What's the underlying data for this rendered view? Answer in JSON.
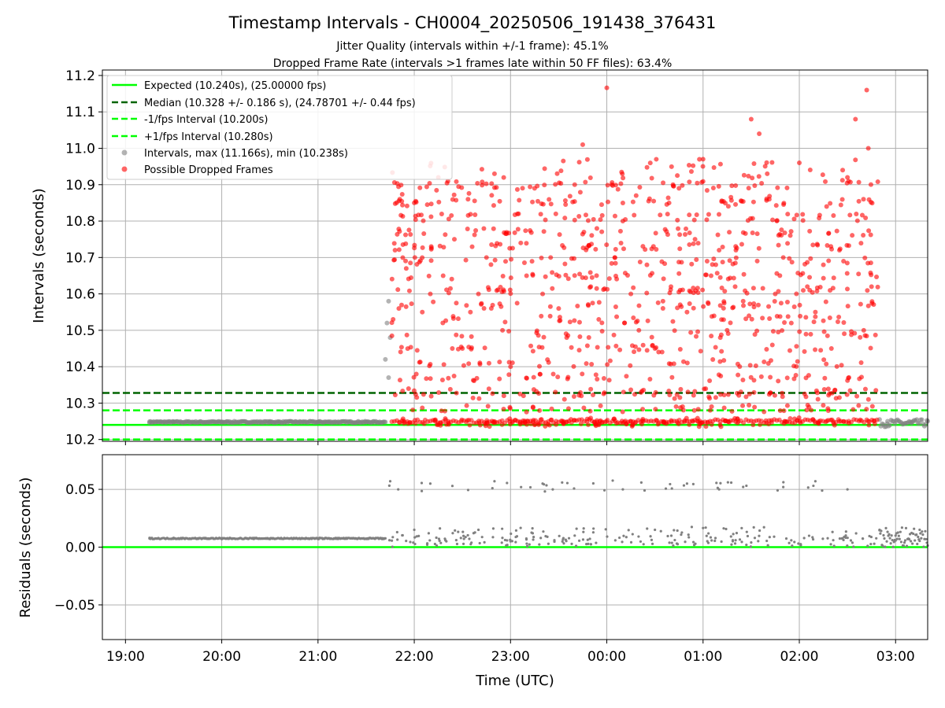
{
  "chart_data": [
    {
      "type": "scatter",
      "title": "Timestamp Intervals - CH0004_20250506_191438_376431",
      "subtitle_lines": [
        "Jitter Quality (intervals within +/-1 frame): 45.1%",
        "Dropped Frame Rate (intervals >1 frames late within 50 FF files): 63.4%"
      ],
      "ylabel": "Intervals (seconds)",
      "ylim": [
        10.195,
        11.215
      ],
      "ytick_labels": [
        "10.2",
        "10.3",
        "10.4",
        "10.5",
        "10.6",
        "10.7",
        "10.8",
        "10.9",
        "11.0",
        "11.1",
        "11.2"
      ],
      "grid": true,
      "legend_placement": "top-left",
      "legend": [
        {
          "label": "Expected (10.240s), (25.00000 fps)",
          "style": "solid",
          "color": "#00ff00"
        },
        {
          "label": "Median (10.328 +/- 0.186 s), (24.78701 +/- 0.44 fps)",
          "style": "dashed",
          "color": "#006400"
        },
        {
          "label": "-1/fps Interval (10.200s)",
          "style": "dashed",
          "color": "#00ff00"
        },
        {
          "label": "+1/fps Interval (10.280s)",
          "style": "dashed",
          "color": "#00ff00"
        },
        {
          "label": "Intervals, max (11.166s), min (10.238s)",
          "style": "marker",
          "color": "#808080"
        },
        {
          "label": "Possible Dropped Frames",
          "style": "marker",
          "color": "#ff0000"
        }
      ],
      "hlines": [
        {
          "name": "expected",
          "y": 10.24,
          "color": "#00ff00",
          "style": "solid"
        },
        {
          "name": "median",
          "y": 10.328,
          "color": "#006400",
          "style": "dashed"
        },
        {
          "name": "minus-one-fps",
          "y": 10.2,
          "color": "#00ff00",
          "style": "dashed"
        },
        {
          "name": "plus-one-fps",
          "y": 10.28,
          "color": "#00ff00",
          "style": "dashed"
        }
      ],
      "series": [
        {
          "name": "Intervals, max (11.166s), min (10.238s)",
          "color": "#808080",
          "values": [
            {
              "x": "19:15",
              "y": 10.249
            },
            {
              "x": "19:30",
              "y": 10.248
            },
            {
              "x": "20:00",
              "y": 10.248
            },
            {
              "x": "20:30",
              "y": 10.248
            },
            {
              "x": "21:00",
              "y": 10.248
            },
            {
              "x": "21:30",
              "y": 10.248
            },
            {
              "x": "21:42",
              "y": 10.42
            },
            {
              "x": "21:43",
              "y": 10.52
            },
            {
              "x": "21:44",
              "y": 10.58
            },
            {
              "x": "21:45",
              "y": 10.48
            },
            {
              "x": "21:44",
              "y": 10.37
            },
            {
              "x": "02:55",
              "y": 10.25
            },
            {
              "x": "03:10",
              "y": 10.245
            },
            {
              "x": "03:20",
              "y": 10.25
            }
          ]
        },
        {
          "name": "Possible Dropped Frames",
          "color": "#ff0000",
          "values": [
            {
              "x": "21:48",
              "y": 10.72
            },
            {
              "x": "21:55",
              "y": 10.67
            },
            {
              "x": "22:00",
              "y": 10.85
            },
            {
              "x": "22:05",
              "y": 10.55
            },
            {
              "x": "22:10",
              "y": 10.6
            },
            {
              "x": "22:15",
              "y": 10.92
            },
            {
              "x": "22:18",
              "y": 10.65
            },
            {
              "x": "22:25",
              "y": 10.75
            },
            {
              "x": "22:30",
              "y": 10.45
            },
            {
              "x": "22:35",
              "y": 10.55
            },
            {
              "x": "22:40",
              "y": 10.6
            },
            {
              "x": "22:45",
              "y": 10.7
            },
            {
              "x": "22:50",
              "y": 10.93
            },
            {
              "x": "22:55",
              "y": 10.5
            },
            {
              "x": "23:00",
              "y": 10.4
            },
            {
              "x": "23:05",
              "y": 10.82
            },
            {
              "x": "23:10",
              "y": 10.65
            },
            {
              "x": "23:15",
              "y": 10.89
            },
            {
              "x": "23:20",
              "y": 10.6
            },
            {
              "x": "23:25",
              "y": 10.7
            },
            {
              "x": "23:30",
              "y": 10.56
            },
            {
              "x": "23:35",
              "y": 10.48
            },
            {
              "x": "23:40",
              "y": 10.9
            },
            {
              "x": "23:45",
              "y": 11.01
            },
            {
              "x": "23:50",
              "y": 10.62
            },
            {
              "x": "23:55",
              "y": 10.53
            },
            {
              "x": "00:00",
              "y": 11.166
            },
            {
              "x": "00:05",
              "y": 10.7
            },
            {
              "x": "00:10",
              "y": 10.8
            },
            {
              "x": "00:15",
              "y": 10.6
            },
            {
              "x": "00:20",
              "y": 10.5
            },
            {
              "x": "00:25",
              "y": 10.68
            },
            {
              "x": "00:30",
              "y": 10.45
            },
            {
              "x": "00:35",
              "y": 10.58
            },
            {
              "x": "00:40",
              "y": 10.62
            },
            {
              "x": "00:45",
              "y": 10.89
            },
            {
              "x": "00:50",
              "y": 10.55
            },
            {
              "x": "00:55",
              "y": 10.75
            },
            {
              "x": "01:00",
              "y": 10.97
            },
            {
              "x": "01:05",
              "y": 10.65
            },
            {
              "x": "01:10",
              "y": 10.72
            },
            {
              "x": "01:15",
              "y": 10.5
            },
            {
              "x": "01:20",
              "y": 10.62
            },
            {
              "x": "01:25",
              "y": 10.58
            },
            {
              "x": "01:30",
              "y": 11.08
            },
            {
              "x": "01:35",
              "y": 11.04
            },
            {
              "x": "01:40",
              "y": 10.93
            },
            {
              "x": "01:45",
              "y": 10.6
            },
            {
              "x": "01:50",
              "y": 10.7
            },
            {
              "x": "01:55",
              "y": 10.52
            },
            {
              "x": "02:00",
              "y": 10.96
            },
            {
              "x": "02:05",
              "y": 10.62
            },
            {
              "x": "02:10",
              "y": 10.55
            },
            {
              "x": "02:15",
              "y": 10.68
            },
            {
              "x": "02:20",
              "y": 10.45
            },
            {
              "x": "02:25",
              "y": 10.72
            },
            {
              "x": "02:30",
              "y": 10.92
            },
            {
              "x": "02:35",
              "y": 11.08
            },
            {
              "x": "02:40",
              "y": 10.86
            },
            {
              "x": "02:42",
              "y": 11.16
            },
            {
              "x": "02:43",
              "y": 11.0
            },
            {
              "x": "02:45",
              "y": 10.62
            }
          ]
        }
      ]
    },
    {
      "type": "scatter",
      "xlabel": "Time (UTC)",
      "ylabel": "Residuals (seconds)",
      "ylim": [
        -0.08,
        0.08
      ],
      "ytick_labels": [
        "−0.05",
        "0.00",
        "0.05"
      ],
      "xtick_labels": [
        "19:00",
        "20:00",
        "21:00",
        "22:00",
        "23:00",
        "00:00",
        "01:00",
        "02:00",
        "03:00"
      ],
      "grid": true,
      "hlines": [
        {
          "name": "zero",
          "y": 0.0,
          "color": "#00ff00",
          "style": "solid"
        }
      ],
      "series": [
        {
          "name": "",
          "color": "#808080",
          "values": [
            {
              "x": "19:15",
              "y": 0.008
            },
            {
              "x": "19:30",
              "y": 0.008
            },
            {
              "x": "20:00",
              "y": 0.007
            },
            {
              "x": "20:30",
              "y": 0.007
            },
            {
              "x": "21:00",
              "y": 0.007
            },
            {
              "x": "21:40",
              "y": 0.007
            },
            {
              "x": "21:45",
              "y": 0.057
            },
            {
              "x": "21:50",
              "y": 0.05
            },
            {
              "x": "22:00",
              "y": 0.015
            },
            {
              "x": "22:10",
              "y": 0.055
            },
            {
              "x": "22:20",
              "y": 0.005
            },
            {
              "x": "22:40",
              "y": 0.015
            },
            {
              "x": "22:50",
              "y": 0.057
            },
            {
              "x": "23:00",
              "y": 0.005
            },
            {
              "x": "23:20",
              "y": 0.055
            },
            {
              "x": "23:40",
              "y": 0.01
            },
            {
              "x": "00:10",
              "y": 0.05
            },
            {
              "x": "00:30",
              "y": 0.015
            },
            {
              "x": "00:50",
              "y": 0.055
            },
            {
              "x": "01:10",
              "y": 0.05
            },
            {
              "x": "01:30",
              "y": 0.004
            },
            {
              "x": "01:50",
              "y": 0.052
            },
            {
              "x": "02:10",
              "y": 0.057
            },
            {
              "x": "02:30",
              "y": 0.05
            },
            {
              "x": "02:50",
              "y": 0.015
            },
            {
              "x": "03:00",
              "y": 0.01
            },
            {
              "x": "03:15",
              "y": 0.015
            }
          ]
        }
      ]
    }
  ]
}
